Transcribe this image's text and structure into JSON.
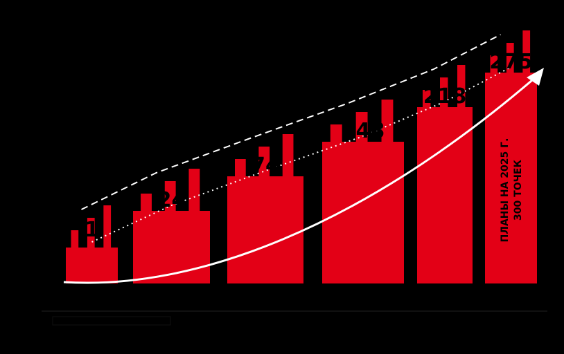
{
  "chart_data": {
    "type": "bar",
    "title": "",
    "ylabel": "",
    "xlabel": "",
    "categories": [
      "",
      "",
      "",
      "",
      "",
      ""
    ],
    "values": [
      1,
      24,
      74,
      148,
      218,
      275
    ],
    "value_labels": [
      "1",
      "24",
      "74",
      "148",
      "218",
      "275"
    ],
    "ylim": [
      0,
      300
    ],
    "grid": false,
    "legend": "bottom-left",
    "legend_entries": [
      ""
    ],
    "annotation": {
      "line1": "ПЛАНЫ НА 2025 Г.",
      "line2": "300 ТОЧЕК"
    }
  },
  "colors": {
    "background": "#000000",
    "bar": "#e30016",
    "trend": "#ffffff"
  }
}
